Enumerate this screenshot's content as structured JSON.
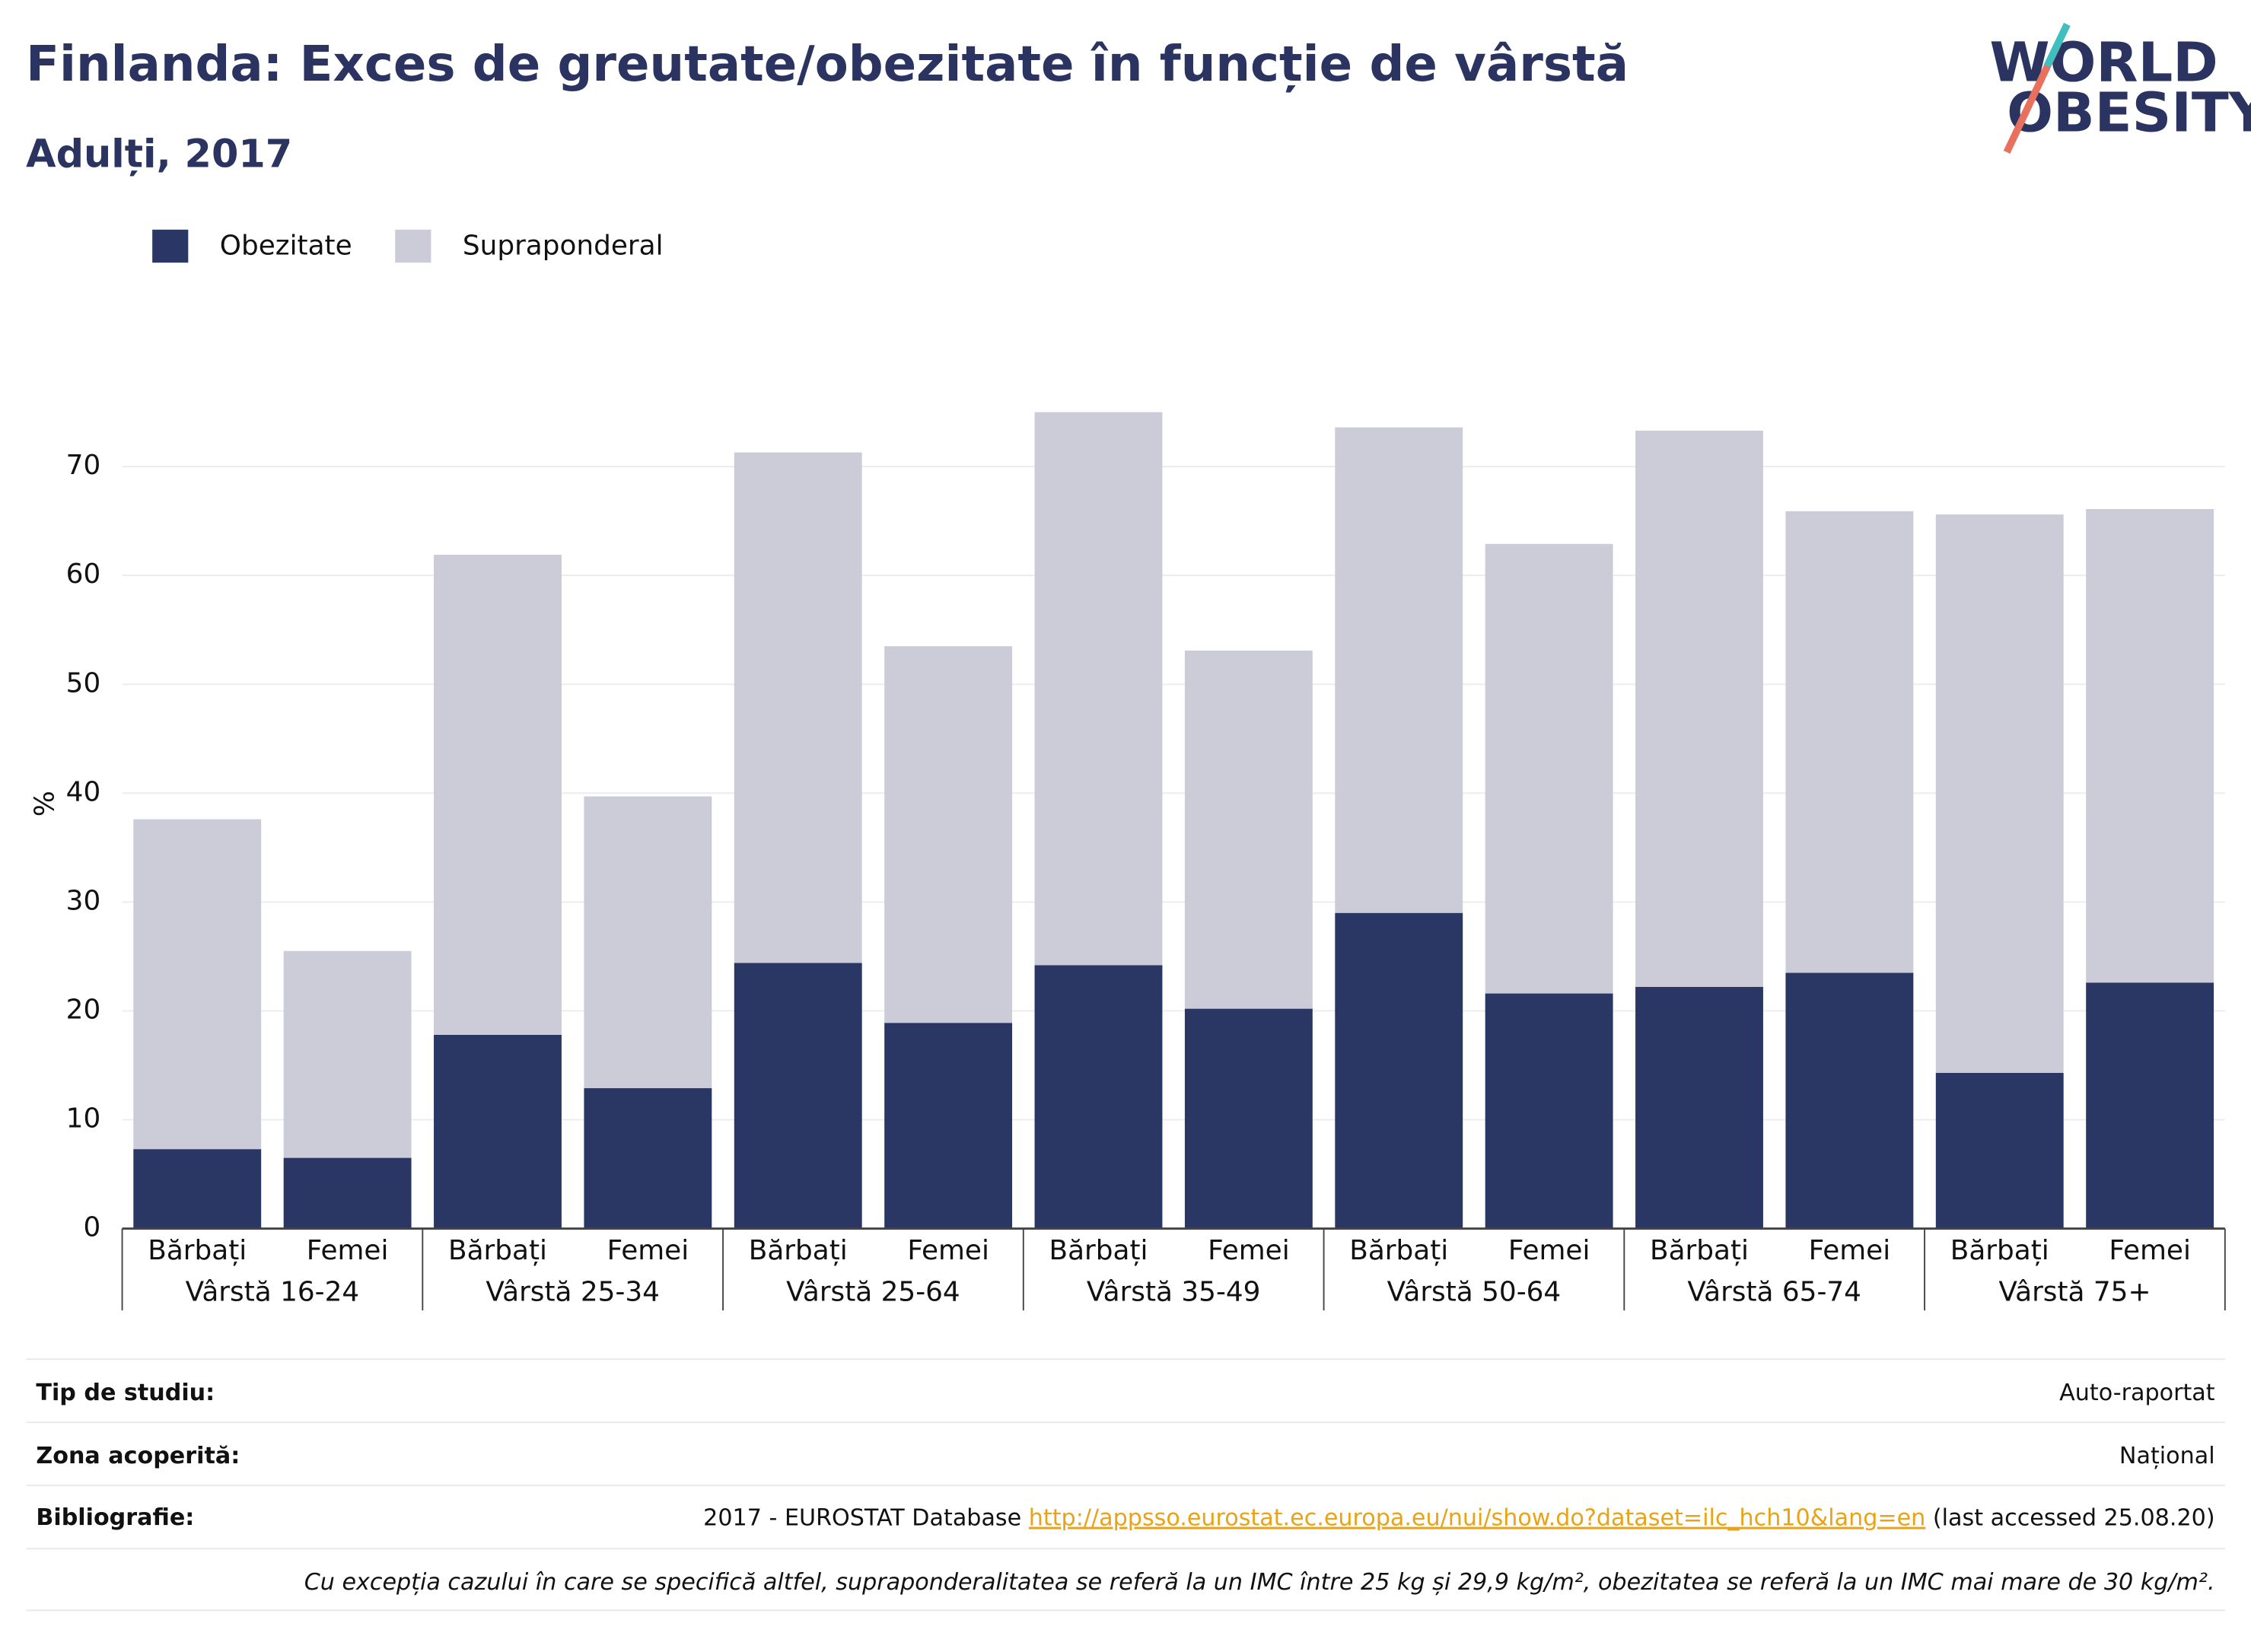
{
  "chart_data": {
    "type": "stacked_bar",
    "title": "Finlanda: Exces de greutate/obezitate în funcție de vârstă",
    "subtitle": "Adulți, 2017",
    "ylabel": "%",
    "categories": [
      "Bărbați",
      "Femei",
      "Bărbați",
      "Femei",
      "Bărbați",
      "Femei",
      "Bărbați",
      "Femei",
      "Bărbați",
      "Femei",
      "Bărbați",
      "Femei",
      "Bărbați",
      "Femei"
    ],
    "groups": [
      "Vârstă 16-24",
      "Vârstă 25-34",
      "Vârstă 25-64",
      "Vârstă 35-49",
      "Vârstă 50-64",
      "Vârstă 65-74",
      "Vârstă 75+"
    ],
    "series": [
      {
        "name": "Obezitate",
        "color": "#2a3663",
        "values": [
          7.3,
          6.5,
          17.8,
          12.9,
          24.4,
          18.9,
          24.2,
          20.2,
          29.0,
          21.6,
          22.2,
          23.5,
          14.3,
          22.6
        ]
      },
      {
        "name": "Supraponderal",
        "color": "#cbccd7",
        "values": [
          30.3,
          19.0,
          44.1,
          26.8,
          46.9,
          34.6,
          50.8,
          32.9,
          44.6,
          41.3,
          51.1,
          42.4,
          51.3,
          43.5
        ]
      }
    ],
    "ylim": [
      0,
      77
    ],
    "yticks": [
      0,
      10,
      20,
      30,
      40,
      50,
      60,
      70
    ],
    "grid": true,
    "legend": "top-left"
  },
  "logo": [
    "WORLD",
    "OBESITY"
  ],
  "footer": {
    "rows": [
      {
        "label": "Tip de studiu:",
        "value": "Auto-raportat"
      },
      {
        "label": "Zona acoperită:",
        "value": "Național"
      }
    ],
    "bibliography": {
      "label": "Bibliografie:",
      "text": "2017 - EUROSTAT Database",
      "link": "http://appsso.eurostat.ec.europa.eu/nui/show.do?dataset=ilc_hch10&lang=en",
      "suffix": "(last accessed 25.08.20)"
    },
    "note": "Cu excepția cazului în care se specifică altfel, supraponderalitatea se referă la un IMC între 25 kg și 29,9 kg/m², obezitatea se referă la un IMC mai mare de 30 kg/m²."
  }
}
